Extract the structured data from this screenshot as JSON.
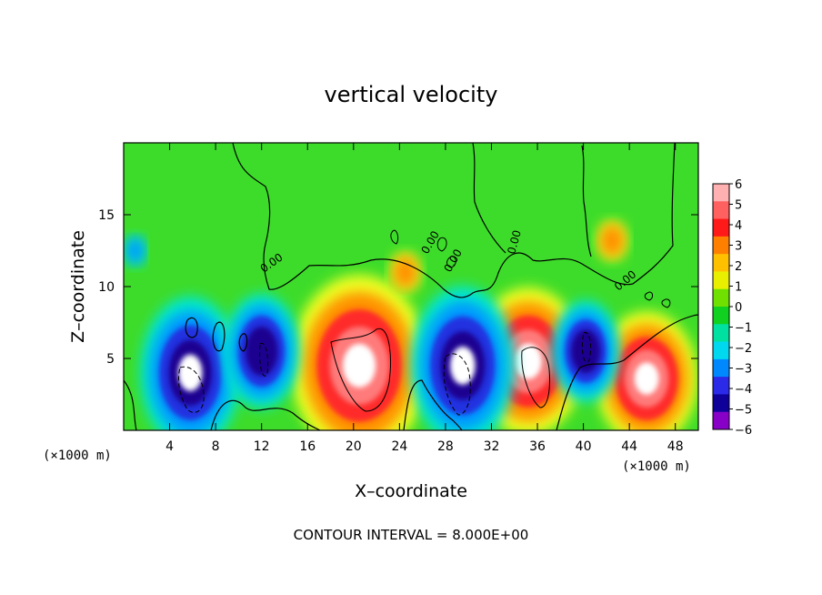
{
  "chart_data": {
    "type": "heatmap",
    "title": "vertical velocity",
    "xlabel": "X–coordinate",
    "ylabel": "Z–coordinate",
    "x_unit": "(×1000 m)",
    "y_unit": "(×1000 m)",
    "xlim": [
      0,
      50
    ],
    "ylim": [
      0,
      20
    ],
    "x_ticks": [
      4,
      8,
      12,
      16,
      20,
      24,
      28,
      32,
      36,
      40,
      44,
      48
    ],
    "y_ticks": [
      5,
      10,
      15
    ],
    "footer": "CONTOUR INTERVAL = 8.000E+00",
    "contour_interval": 8.0,
    "contour_labels": [
      "0.00",
      "0.00",
      "0.00",
      "0.00",
      "0.00"
    ],
    "colorbar": {
      "ticks": [
        6,
        5,
        4,
        3,
        2,
        1,
        0,
        -1,
        -2,
        -3,
        -4,
        -5,
        -6
      ],
      "colors": [
        "#ffb0b0",
        "#ff6060",
        "#ff1a1a",
        "#ff8000",
        "#ffc000",
        "#e8f000",
        "#70e000",
        "#10d020",
        "#00e0a0",
        "#00d8f0",
        "#0088ff",
        "#2a2ae8",
        "#10009a",
        "#8800c8"
      ]
    },
    "features": [
      {
        "type": "updraft",
        "x": 20.5,
        "z": 4.5,
        "strength": 1.35
      },
      {
        "type": "updraft",
        "x": 35.2,
        "z": 4.8,
        "strength": 1.1
      },
      {
        "type": "updraft",
        "x": 45.5,
        "z": 3.6,
        "strength": 1.0
      },
      {
        "type": "updraft",
        "x": 42.5,
        "z": 13.2,
        "strength": 0.3
      },
      {
        "type": "updraft",
        "x": 24.5,
        "z": 11.0,
        "strength": 0.3
      },
      {
        "type": "updraft",
        "x": 8.0,
        "z": 6.0,
        "strength": 0.3
      },
      {
        "type": "downdraft",
        "x": 5.8,
        "z": 4.0,
        "strength": 1.2
      },
      {
        "type": "downdraft",
        "x": 12.0,
        "z": 5.5,
        "strength": 0.9
      },
      {
        "type": "downdraft",
        "x": 29.5,
        "z": 4.5,
        "strength": 1.25
      },
      {
        "type": "downdraft",
        "x": 40.2,
        "z": 5.5,
        "strength": 0.8
      },
      {
        "type": "downdraft",
        "x": 1.0,
        "z": 12.5,
        "strength": 0.25
      }
    ]
  }
}
